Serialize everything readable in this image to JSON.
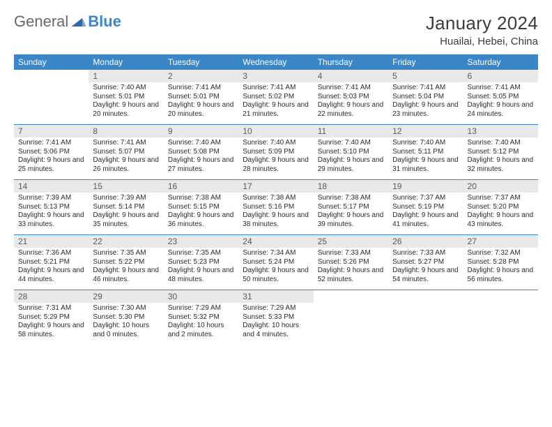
{
  "logo": {
    "general": "General",
    "blue": "Blue"
  },
  "title": {
    "month": "January 2024",
    "location": "Huailai, Hebei, China"
  },
  "colors": {
    "header_bg": "#3b86c6",
    "daynum_bg": "#e9e9e9",
    "rule": "#3b86c6"
  },
  "weekdays": [
    "Sunday",
    "Monday",
    "Tuesday",
    "Wednesday",
    "Thursday",
    "Friday",
    "Saturday"
  ],
  "weeks": [
    [
      null,
      {
        "n": "1",
        "sr": "7:40 AM",
        "ss": "5:01 PM",
        "dl": "9 hours and 20 minutes."
      },
      {
        "n": "2",
        "sr": "7:41 AM",
        "ss": "5:01 PM",
        "dl": "9 hours and 20 minutes."
      },
      {
        "n": "3",
        "sr": "7:41 AM",
        "ss": "5:02 PM",
        "dl": "9 hours and 21 minutes."
      },
      {
        "n": "4",
        "sr": "7:41 AM",
        "ss": "5:03 PM",
        "dl": "9 hours and 22 minutes."
      },
      {
        "n": "5",
        "sr": "7:41 AM",
        "ss": "5:04 PM",
        "dl": "9 hours and 23 minutes."
      },
      {
        "n": "6",
        "sr": "7:41 AM",
        "ss": "5:05 PM",
        "dl": "9 hours and 24 minutes."
      }
    ],
    [
      {
        "n": "7",
        "sr": "7:41 AM",
        "ss": "5:06 PM",
        "dl": "9 hours and 25 minutes."
      },
      {
        "n": "8",
        "sr": "7:41 AM",
        "ss": "5:07 PM",
        "dl": "9 hours and 26 minutes."
      },
      {
        "n": "9",
        "sr": "7:40 AM",
        "ss": "5:08 PM",
        "dl": "9 hours and 27 minutes."
      },
      {
        "n": "10",
        "sr": "7:40 AM",
        "ss": "5:09 PM",
        "dl": "9 hours and 28 minutes."
      },
      {
        "n": "11",
        "sr": "7:40 AM",
        "ss": "5:10 PM",
        "dl": "9 hours and 29 minutes."
      },
      {
        "n": "12",
        "sr": "7:40 AM",
        "ss": "5:11 PM",
        "dl": "9 hours and 31 minutes."
      },
      {
        "n": "13",
        "sr": "7:40 AM",
        "ss": "5:12 PM",
        "dl": "9 hours and 32 minutes."
      }
    ],
    [
      {
        "n": "14",
        "sr": "7:39 AM",
        "ss": "5:13 PM",
        "dl": "9 hours and 33 minutes."
      },
      {
        "n": "15",
        "sr": "7:39 AM",
        "ss": "5:14 PM",
        "dl": "9 hours and 35 minutes."
      },
      {
        "n": "16",
        "sr": "7:38 AM",
        "ss": "5:15 PM",
        "dl": "9 hours and 36 minutes."
      },
      {
        "n": "17",
        "sr": "7:38 AM",
        "ss": "5:16 PM",
        "dl": "9 hours and 38 minutes."
      },
      {
        "n": "18",
        "sr": "7:38 AM",
        "ss": "5:17 PM",
        "dl": "9 hours and 39 minutes."
      },
      {
        "n": "19",
        "sr": "7:37 AM",
        "ss": "5:19 PM",
        "dl": "9 hours and 41 minutes."
      },
      {
        "n": "20",
        "sr": "7:37 AM",
        "ss": "5:20 PM",
        "dl": "9 hours and 43 minutes."
      }
    ],
    [
      {
        "n": "21",
        "sr": "7:36 AM",
        "ss": "5:21 PM",
        "dl": "9 hours and 44 minutes."
      },
      {
        "n": "22",
        "sr": "7:35 AM",
        "ss": "5:22 PM",
        "dl": "9 hours and 46 minutes."
      },
      {
        "n": "23",
        "sr": "7:35 AM",
        "ss": "5:23 PM",
        "dl": "9 hours and 48 minutes."
      },
      {
        "n": "24",
        "sr": "7:34 AM",
        "ss": "5:24 PM",
        "dl": "9 hours and 50 minutes."
      },
      {
        "n": "25",
        "sr": "7:33 AM",
        "ss": "5:26 PM",
        "dl": "9 hours and 52 minutes."
      },
      {
        "n": "26",
        "sr": "7:33 AM",
        "ss": "5:27 PM",
        "dl": "9 hours and 54 minutes."
      },
      {
        "n": "27",
        "sr": "7:32 AM",
        "ss": "5:28 PM",
        "dl": "9 hours and 56 minutes."
      }
    ],
    [
      {
        "n": "28",
        "sr": "7:31 AM",
        "ss": "5:29 PM",
        "dl": "9 hours and 58 minutes."
      },
      {
        "n": "29",
        "sr": "7:30 AM",
        "ss": "5:30 PM",
        "dl": "10 hours and 0 minutes."
      },
      {
        "n": "30",
        "sr": "7:29 AM",
        "ss": "5:32 PM",
        "dl": "10 hours and 2 minutes."
      },
      {
        "n": "31",
        "sr": "7:29 AM",
        "ss": "5:33 PM",
        "dl": "10 hours and 4 minutes."
      },
      null,
      null,
      null
    ]
  ],
  "labels": {
    "sunrise": "Sunrise: ",
    "sunset": "Sunset: ",
    "daylight": "Daylight: "
  }
}
